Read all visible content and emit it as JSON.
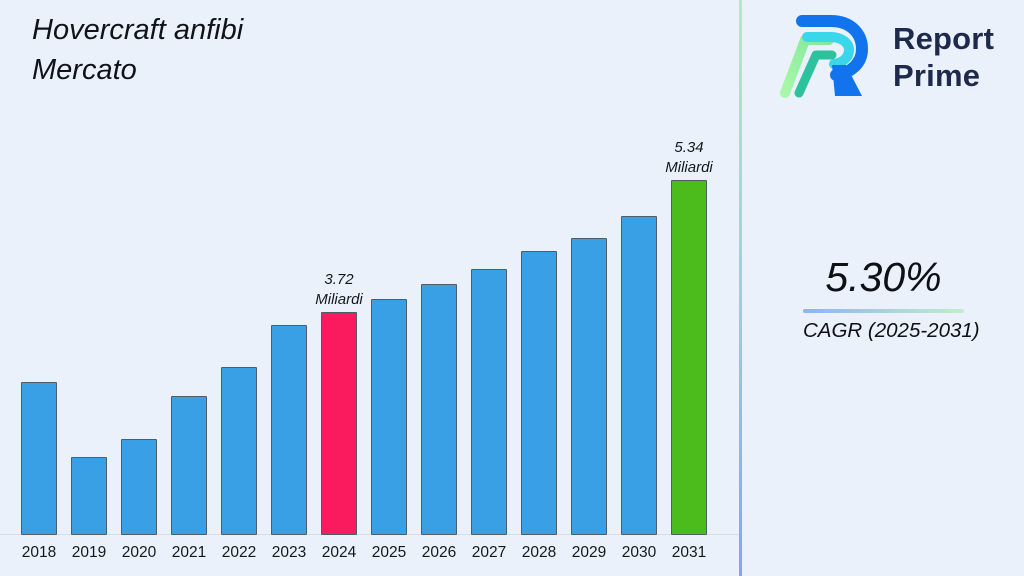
{
  "page": {
    "background": "#ebf1fb"
  },
  "title": {
    "line1": "Hovercraft anfibi",
    "line2": "Mercato"
  },
  "logo": {
    "line1": "Report",
    "line2": "Prime",
    "colors": {
      "blue": "#1274ec",
      "cyan": "#3ad6e9",
      "green": "#8df29e",
      "teal": "#2dc29e",
      "text": "#1e2a4c"
    }
  },
  "cagr": {
    "value": "5.30%",
    "label": "CAGR (2025-2031)"
  },
  "chart_data": {
    "type": "bar",
    "title": "Hovercraft anfibi Mercato",
    "unit": "Miliardi",
    "categories": [
      "2018",
      "2019",
      "2020",
      "2021",
      "2022",
      "2023",
      "2024",
      "2025",
      "2026",
      "2027",
      "2028",
      "2029",
      "2030",
      "2031"
    ],
    "values": [
      2.86,
      1.94,
      2.16,
      2.68,
      3.04,
      3.56,
      3.72,
      3.88,
      4.06,
      4.24,
      4.46,
      4.63,
      4.89,
      5.34
    ],
    "data_labels": {
      "2024": "3.72\nMiliardi",
      "2031": "5.34\nMiliardi"
    },
    "colors": {
      "default": "#39a0e5",
      "highlights": {
        "2024": "#fa1b5e",
        "2031": "#4cbb1c"
      }
    },
    "axis": {
      "x_labels_visible": true,
      "y_axis_visible": false,
      "value_at_baseline": 0.98
    },
    "legend": "none",
    "grid": "off"
  }
}
